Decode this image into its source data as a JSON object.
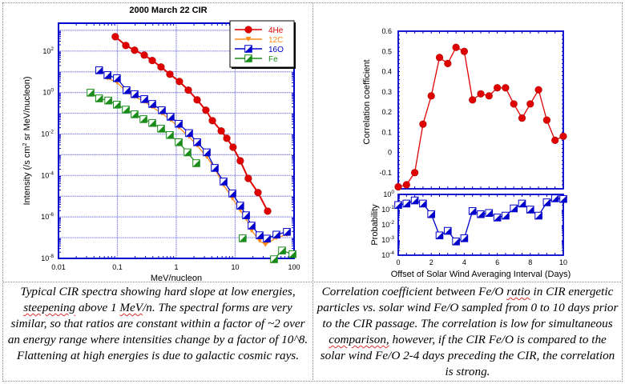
{
  "chart_data": [
    {
      "type": "line",
      "title": "2000 March 22 CIR",
      "xlabel": "MeV/nucleon",
      "ylabel": "Intensity (/s cm^2 sr MeV/nucleon)",
      "xscale": "log",
      "yscale": "log",
      "xlim": [
        0.01,
        100
      ],
      "ylim": [
        1e-08,
        2200
      ],
      "grid": true,
      "legend_position": "top-right",
      "x_ticks": [
        {
          "v": 0.01,
          "label": "0.01"
        },
        {
          "v": 0.1,
          "label": "0.1"
        },
        {
          "v": 1,
          "label": "1"
        },
        {
          "v": 10,
          "label": "10"
        },
        {
          "v": 100,
          "label": "100"
        }
      ],
      "y_ticks": [
        {
          "v": 100,
          "label": "10",
          "exp": "2"
        },
        {
          "v": 1,
          "label": "10",
          "exp": "0"
        },
        {
          "v": 0.01,
          "label": "10",
          "exp": "-2"
        },
        {
          "v": 0.0001,
          "label": "10",
          "exp": "-4"
        },
        {
          "v": 1e-06,
          "label": "10",
          "exp": "-6"
        },
        {
          "v": 1e-08,
          "label": "10",
          "exp": "-8"
        }
      ],
      "series": [
        {
          "name": "4He",
          "color": "#e00000",
          "marker": "circle",
          "x": [
            0.092,
            0.139,
            0.196,
            0.286,
            0.391,
            0.551,
            0.778,
            1.13,
            1.6,
            2.26,
            3.18,
            4.1,
            5.8,
            7.2,
            9.2,
            12.2,
            16.7,
            24.4,
            35.6
          ],
          "y": [
            490,
            186,
            110,
            64,
            35,
            17,
            7.6,
            3.4,
            1.3,
            0.44,
            0.14,
            0.044,
            0.014,
            0.0062,
            0.0023,
            0.00051,
            7.2e-05,
            1.5e-05,
            1.9e-06
          ]
        },
        {
          "name": "12C",
          "color": "#ff8c1a",
          "marker": "triangle-down",
          "x": [
            0.068,
            0.098,
            0.143,
            0.196,
            0.286,
            0.391,
            0.569,
            0.8,
            1.1,
            1.65,
            2.26,
            3.29,
            4.5,
            6.35,
            8.96,
            12.2,
            15.3,
            19.0,
            26.0,
            32.6,
            50.2,
            75.5
          ],
          "y": [
            4.9,
            3.1,
            1.07,
            0.63,
            0.37,
            0.2,
            0.098,
            0.048,
            0.021,
            0.0074,
            0.0028,
            0.00079,
            0.00021,
            3.5e-05,
            7.9e-06,
            2.1e-06,
            8.5e-07,
            2.2e-07,
            7.1e-08,
            4.6e-08,
            1e-07,
            1.4e-07
          ]
        },
        {
          "name": "16O",
          "color": "#0000cc",
          "marker": "half-square",
          "x": [
            0.049,
            0.068,
            0.098,
            0.143,
            0.196,
            0.286,
            0.391,
            0.569,
            0.8,
            1.1,
            1.65,
            2.26,
            3.29,
            4.5,
            6.35,
            8.96,
            12.2,
            15.3,
            19.0,
            26.0,
            34.5,
            50.2,
            75.5
          ],
          "y": [
            11.8,
            6.9,
            4.9,
            1.29,
            0.83,
            0.48,
            0.28,
            0.14,
            0.068,
            0.031,
            0.011,
            0.004,
            0.0013,
            0.00023,
            5.1e-05,
            1.35e-05,
            3.5e-06,
            1.2e-06,
            3.8e-07,
            1.3e-07,
            9e-08,
            1.4e-07,
            1.9e-07
          ]
        },
        {
          "name": "Fe",
          "color": "#1a8c1a",
          "marker": "half-square",
          "x": [
            0.035,
            0.049,
            0.07,
            0.098,
            0.139,
            0.196,
            0.277,
            0.391,
            0.551,
            0.778,
            1.1,
            1.55,
            2.19,
            13.4,
            45.7,
            62.5,
            94
          ],
          "y": [
            0.98,
            0.52,
            0.41,
            0.26,
            0.15,
            0.089,
            0.052,
            0.034,
            0.018,
            0.0089,
            0.004,
            0.0013,
            0.00039,
            9.3e-08,
            9.1e-09,
            2.4e-08,
            1.6e-08
          ]
        }
      ]
    },
    {
      "type": "line",
      "title": "",
      "xlabel": "Offset of Solar Wind Averaging Interval (Days)",
      "ylabel": "Correlation coefficient",
      "xlim": [
        0,
        10
      ],
      "ylim": [
        -0.18,
        0.6
      ],
      "grid": false,
      "x_ticks": [
        "0",
        "2",
        "4",
        "6",
        "8",
        "10"
      ],
      "y_ticks": [
        "-0.1",
        "0",
        "0.1",
        "0.2",
        "0.3",
        "0.4",
        "0.5",
        "0.6"
      ],
      "series": [
        {
          "name": "Correlation coefficient",
          "color": "#e00000",
          "marker": "circle",
          "x": [
            0,
            0.5,
            1,
            1.5,
            2,
            2.5,
            3,
            3.5,
            4,
            4.5,
            5,
            5.5,
            6,
            6.5,
            7,
            7.5,
            8,
            8.5,
            9,
            9.5,
            10
          ],
          "y": [
            -0.17,
            -0.16,
            -0.1,
            0.14,
            0.28,
            0.47,
            0.44,
            0.52,
            0.5,
            0.26,
            0.29,
            0.28,
            0.32,
            0.32,
            0.24,
            0.17,
            0.24,
            0.31,
            0.16,
            0.06,
            0.08
          ]
        }
      ]
    },
    {
      "type": "line",
      "title": "",
      "xlabel": "Offset of Solar Wind Averaging Interval (Days)",
      "ylabel": "Probability",
      "yscale": "log",
      "xlim": [
        0,
        10
      ],
      "ylim": [
        0.0001,
        1
      ],
      "grid": false,
      "x_ticks": [
        "0",
        "2",
        "4",
        "6",
        "8",
        "10"
      ],
      "y_ticks": [
        {
          "label": "10",
          "exp": "0"
        },
        {
          "label": "10",
          "exp": "-1"
        },
        {
          "label": "10",
          "exp": "-2"
        },
        {
          "label": "10",
          "exp": "-3"
        },
        {
          "label": "10",
          "exp": "-4"
        }
      ],
      "series": [
        {
          "name": "Probability",
          "color": "#0000cc",
          "marker": "half-square",
          "x": [
            0,
            0.5,
            1,
            1.5,
            2,
            2.5,
            3,
            3.5,
            4,
            4.5,
            5,
            5.5,
            6,
            6.5,
            7,
            7.5,
            8,
            8.5,
            9,
            9.5,
            10
          ],
          "y": [
            0.2,
            0.25,
            0.4,
            0.25,
            0.05,
            0.002,
            0.004,
            0.0008,
            0.0013,
            0.08,
            0.05,
            0.06,
            0.03,
            0.04,
            0.12,
            0.25,
            0.1,
            0.04,
            0.3,
            0.55,
            0.5
          ]
        }
      ]
    }
  ],
  "captions": {
    "left": {
      "parts": [
        {
          "t": "Typical CIR spectra showing hard slope at low energies, "
        },
        {
          "t": "steepening",
          "sq": true
        },
        {
          "t": " above 1 "
        },
        {
          "t": "MeV",
          "sq": true
        },
        {
          "t": "/n.  The spectral forms are very similar, so that ratios are constant within a factor of ~2 over an energy range where intensities change by a factor of 10^8.  Flattening at high energies is due to galactic cosmic rays."
        }
      ]
    },
    "right": {
      "parts": [
        {
          "t": "Correlation coefficient between Fe/O "
        },
        {
          "t": "ratio",
          "sq": true
        },
        {
          "t": " in CIR energetic particles vs. solar wind Fe/O sampled from 0 to 10 days prior to the CIR passage. The correlation is low for simultaneous "
        },
        {
          "t": "comparison,",
          "sq": true
        },
        {
          "t": " however, if the CIR Fe/O is compared to the solar wind Fe/O 2-4 days preceding the CIR, the correlation is strong."
        }
      ]
    }
  }
}
